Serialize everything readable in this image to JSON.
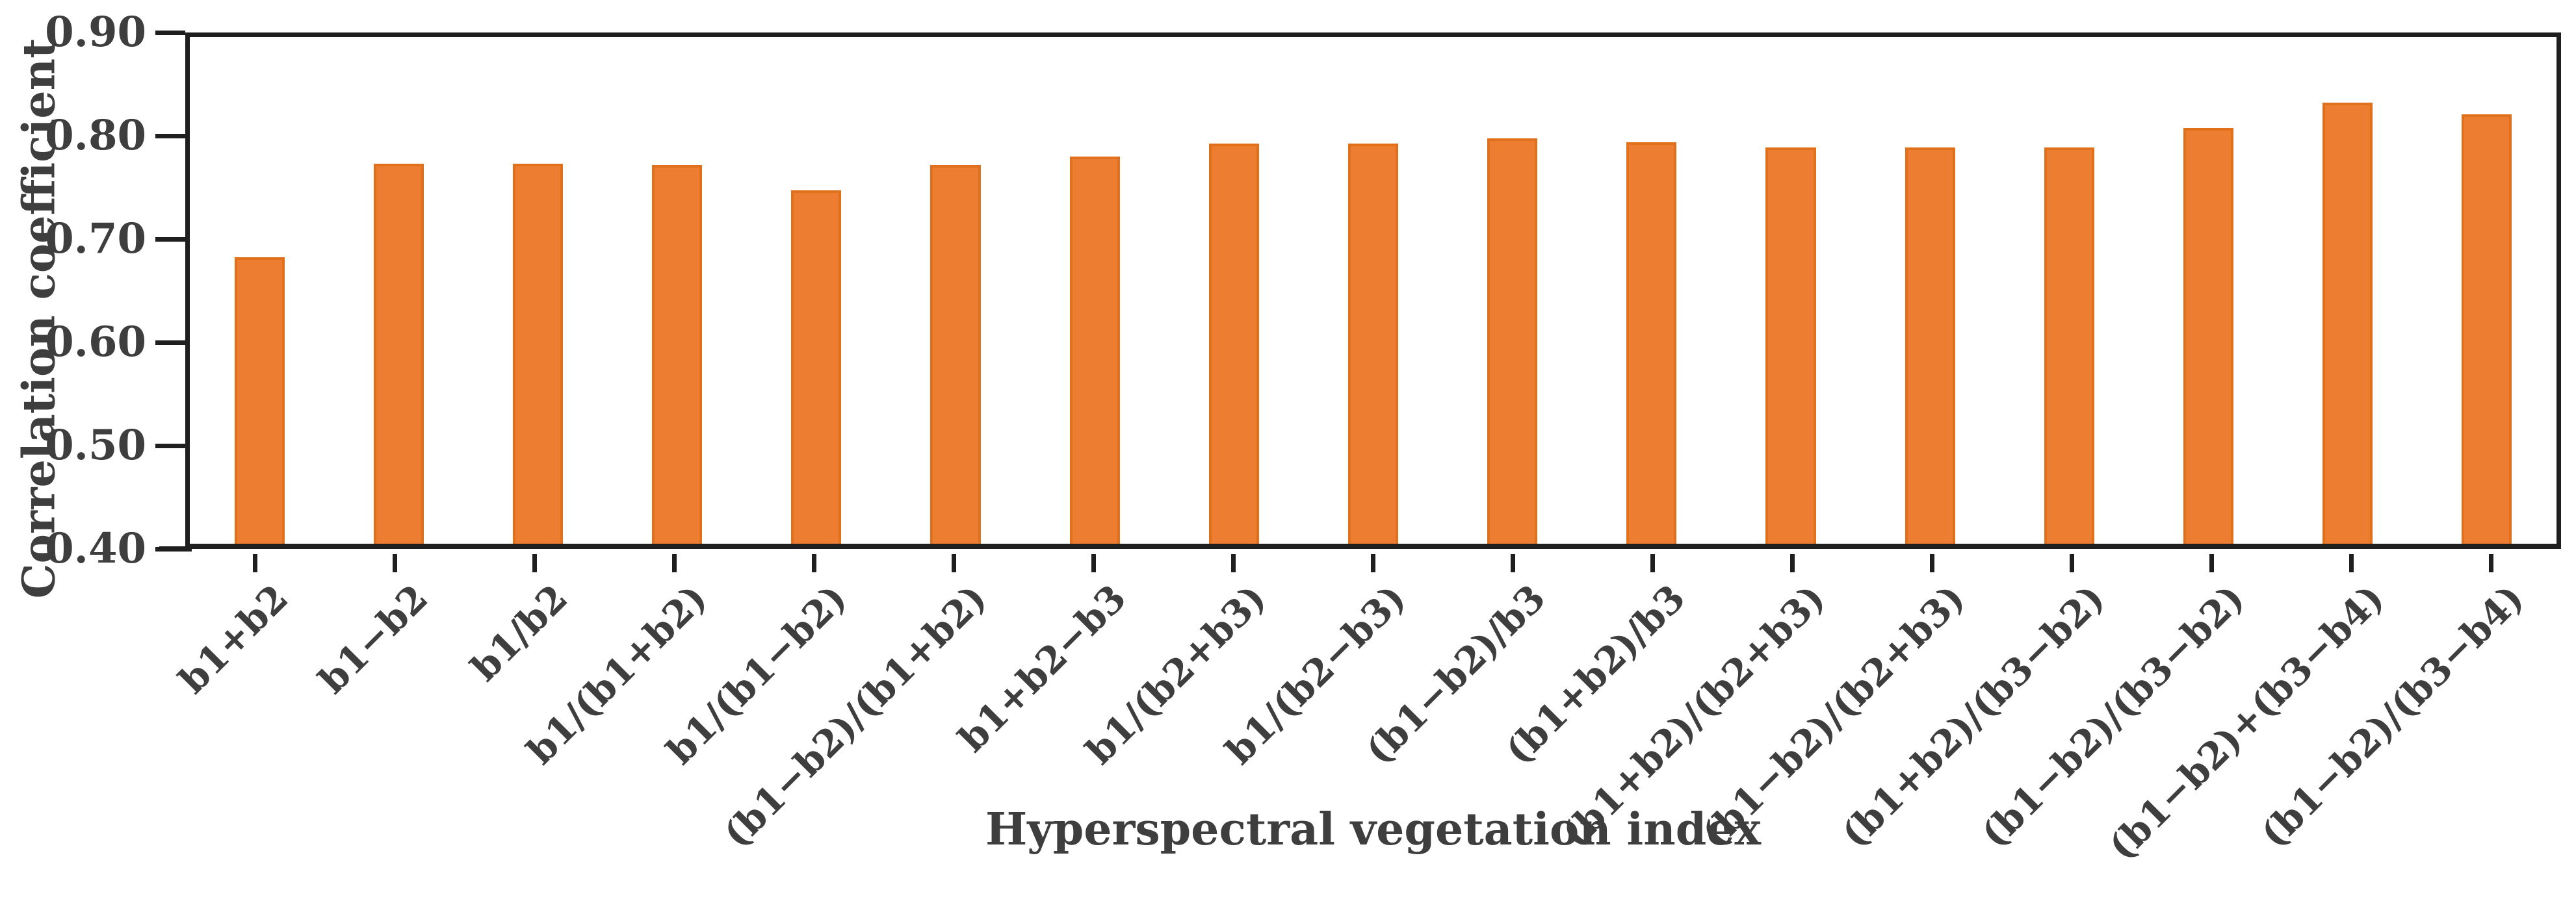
{
  "chart_data": {
    "type": "bar",
    "title": "",
    "xlabel": "Hyperspectral vegetation index",
    "ylabel": "Correlation coefficient",
    "ylim": [
      0.4,
      0.9
    ],
    "ytick_labels": [
      "0.90",
      "0.80",
      "0.70",
      "0.60",
      "0.50",
      "0.40"
    ],
    "grid": false,
    "legend": "none",
    "bar_color": "#ED7D31",
    "bar_edge_color": "#E0701C",
    "axis_color": "#1F1F1F",
    "text_color": "#3E3E3E",
    "categories": [
      "b1+b2",
      "b1−b2",
      "b1/b2",
      "b1/(b1+b2)",
      "b1/(b1−b2)",
      "(b1−b2)/(b1+b2)",
      "b1+b2−b3",
      "b1/(b2+b3)",
      "b1/(b2−b3)",
      "(b1−b2)/b3",
      "(b1+b2)/b3",
      "(b1+b2)/(b2+b3)",
      "(b1−b2)/(b2+b3)",
      "(b1+b2)/(b3−b2)",
      "(b1−b2)/(b3−b2)",
      "(b1−b2)+(b3−b4)",
      "(b1−b2)/(b3−b4)"
    ],
    "values": [
      0.683,
      0.775,
      0.775,
      0.774,
      0.749,
      0.774,
      0.782,
      0.795,
      0.795,
      0.8,
      0.796,
      0.791,
      0.791,
      0.791,
      0.81,
      0.835,
      0.824
    ]
  }
}
